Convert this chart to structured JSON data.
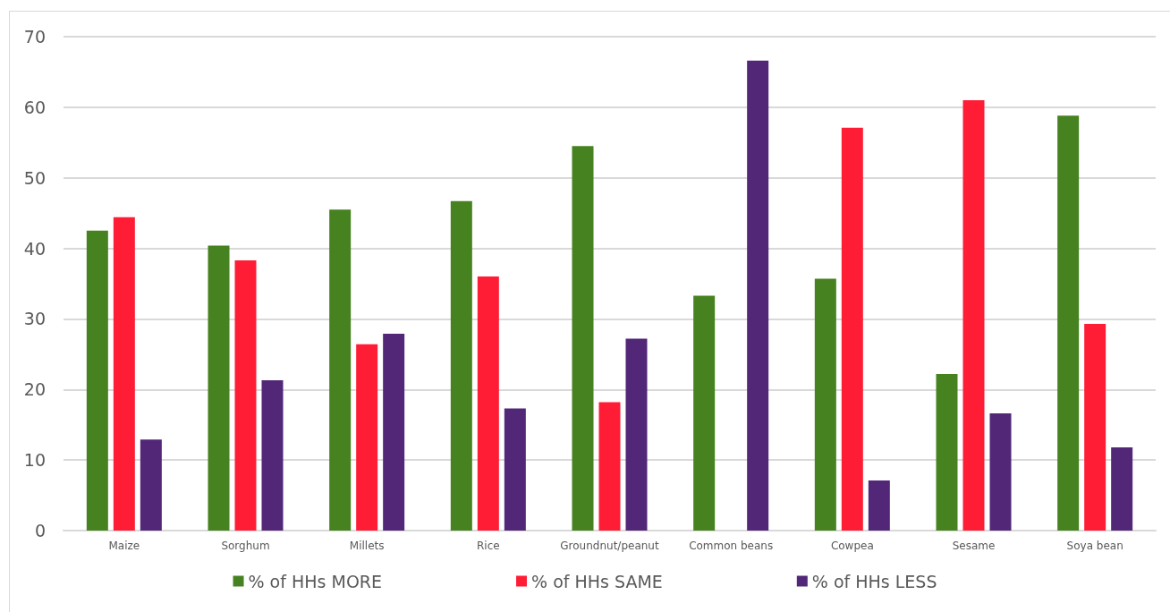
{
  "chart_data": {
    "type": "bar",
    "categories": [
      "Maize",
      "Sorghum",
      "Millets",
      "Rice",
      "Groundnut/peanut",
      "Common beans",
      "Cowpea",
      "Sesame",
      "Soya bean"
    ],
    "series": [
      {
        "name": "% of HHs MORE",
        "color": "#478220",
        "values": [
          42.5,
          40.4,
          45.5,
          46.7,
          54.5,
          33.3,
          35.7,
          22.2,
          58.8
        ]
      },
      {
        "name": "% of HHs SAME",
        "color": "#ff1d36",
        "values": [
          44.4,
          38.3,
          26.4,
          36.0,
          18.2,
          0,
          57.1,
          61.0,
          29.3
        ]
      },
      {
        "name": "% of HHs LESS",
        "color": "#522778",
        "values": [
          12.9,
          21.3,
          27.9,
          17.3,
          27.2,
          66.6,
          7.1,
          16.6,
          11.8
        ]
      }
    ],
    "ylim": [
      0,
      70
    ],
    "yticks": [
      0,
      10,
      20,
      30,
      40,
      50,
      60,
      70
    ],
    "grid": "y",
    "legend": "bottom"
  }
}
